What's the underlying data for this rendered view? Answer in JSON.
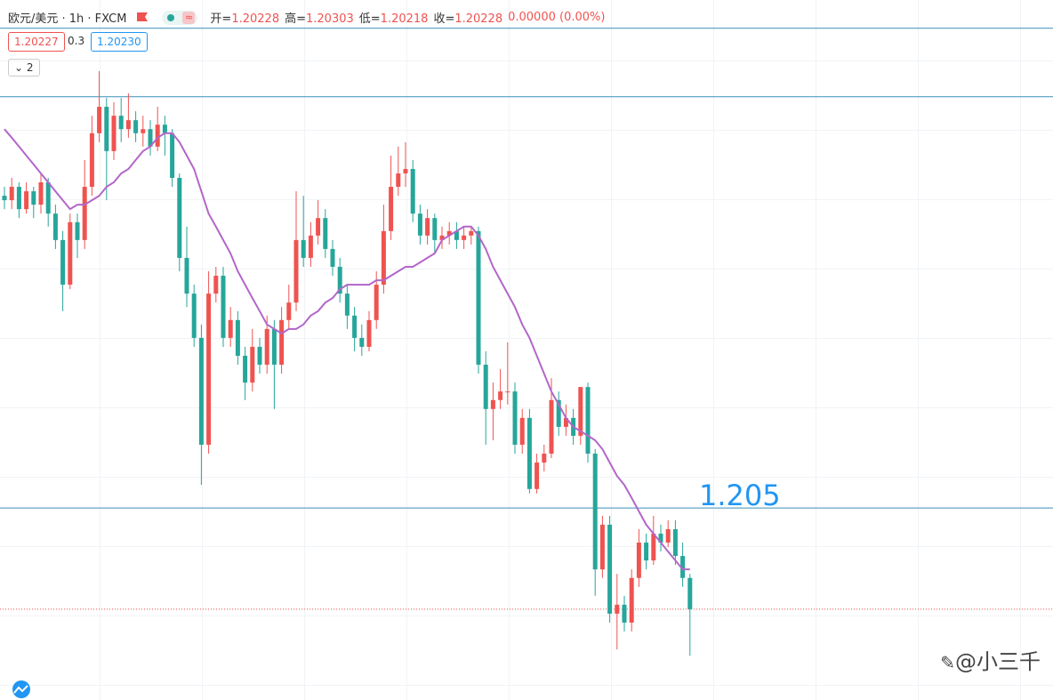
{
  "chart_data": {
    "type": "candlestick",
    "symbol": "欧元/美元 · 1h · FXCM",
    "ohlc_labels": [
      {
        "label": "开=",
        "value": "1.20228"
      },
      {
        "label": "高=",
        "value": "1.20303"
      },
      {
        "label": "低=",
        "value": "1.20218"
      },
      {
        "label": "收=",
        "value": "1.20228"
      }
    ],
    "change": "0.00000 (0.00%)",
    "bid": "1.20227",
    "spread": "0.3",
    "ask": "1.20230",
    "indicator_count": "2",
    "watermark": "@小三千",
    "up_color": "#ef5350",
    "down_color": "#26a69a",
    "ma_color": "#b366c9",
    "line_color": "#3a8fb7",
    "ylim": [
      1.19984,
      1.21865
    ],
    "hlines": [
      1.21789,
      1.21605,
      1.205
    ],
    "annotation_line": 2,
    "price_line": 1.20228,
    "candles": [
      [
        1.21339,
        1.21363,
        1.21303,
        1.21327
      ],
      [
        1.21327,
        1.21387,
        1.21303,
        1.21363
      ],
      [
        1.21363,
        1.21375,
        1.21279,
        1.21303
      ],
      [
        1.21303,
        1.21375,
        1.21291,
        1.21351
      ],
      [
        1.21351,
        1.21363,
        1.21279,
        1.21315
      ],
      [
        1.21315,
        1.21399,
        1.21291,
        1.21375
      ],
      [
        1.21375,
        1.21387,
        1.21256,
        1.21291
      ],
      [
        1.21291,
        1.21315,
        1.21196,
        1.2122
      ],
      [
        1.2122,
        1.21244,
        1.21029,
        1.211
      ],
      [
        1.211,
        1.21291,
        1.21088,
        1.21268
      ],
      [
        1.21268,
        1.21291,
        1.21172,
        1.2122
      ],
      [
        1.2122,
        1.21435,
        1.21196,
        1.21363
      ],
      [
        1.21363,
        1.21554,
        1.21339,
        1.21507
      ],
      [
        1.21507,
        1.21674,
        1.21483,
        1.21578
      ],
      [
        1.21578,
        1.21602,
        1.21327,
        1.21459
      ],
      [
        1.21459,
        1.2159,
        1.21435,
        1.21554
      ],
      [
        1.21554,
        1.21602,
        1.21483,
        1.21518
      ],
      [
        1.21518,
        1.21614,
        1.21495,
        1.21542
      ],
      [
        1.21542,
        1.21566,
        1.21483,
        1.21507
      ],
      [
        1.21507,
        1.21554,
        1.21471,
        1.21518
      ],
      [
        1.21518,
        1.21542,
        1.21447,
        1.21471
      ],
      [
        1.21471,
        1.21578,
        1.21459,
        1.2153
      ],
      [
        1.2153,
        1.21554,
        1.21447,
        1.21507
      ],
      [
        1.21507,
        1.21518,
        1.21363,
        1.21387
      ],
      [
        1.21387,
        1.21399,
        1.21136,
        1.21172
      ],
      [
        1.21172,
        1.21256,
        1.2104,
        1.21076
      ],
      [
        1.21076,
        1.211,
        1.20933,
        1.20957
      ],
      [
        1.20957,
        1.20993,
        1.20562,
        1.2067
      ],
      [
        1.2067,
        1.21136,
        1.20646,
        1.21076
      ],
      [
        1.21076,
        1.21148,
        1.21052,
        1.21124
      ],
      [
        1.21124,
        1.21148,
        1.20933,
        1.20957
      ],
      [
        1.20957,
        1.2104,
        1.20933,
        1.21005
      ],
      [
        1.21005,
        1.21029,
        1.20885,
        1.20909
      ],
      [
        1.20909,
        1.20933,
        1.2079,
        1.20837
      ],
      [
        1.20837,
        1.20981,
        1.20813,
        1.20933
      ],
      [
        1.20933,
        1.20957,
        1.20861,
        1.20885
      ],
      [
        1.20885,
        1.21017,
        1.20861,
        1.20981
      ],
      [
        1.20981,
        1.21005,
        1.20766,
        1.20885
      ],
      [
        1.20885,
        1.2104,
        1.20861,
        1.21005
      ],
      [
        1.21005,
        1.211,
        1.20981,
        1.21052
      ],
      [
        1.21052,
        1.21351,
        1.21029,
        1.2122
      ],
      [
        1.2122,
        1.21339,
        1.21148,
        1.21172
      ],
      [
        1.21172,
        1.21268,
        1.21148,
        1.21232
      ],
      [
        1.21232,
        1.21327,
        1.21208,
        1.21279
      ],
      [
        1.21279,
        1.21303,
        1.21172,
        1.21196
      ],
      [
        1.21196,
        1.2122,
        1.21124,
        1.21148
      ],
      [
        1.21148,
        1.21172,
        1.21052,
        1.21076
      ],
      [
        1.21076,
        1.211,
        1.20981,
        1.21017
      ],
      [
        1.21017,
        1.2104,
        1.20921,
        1.20957
      ],
      [
        1.20957,
        1.20993,
        1.20909,
        1.20933
      ],
      [
        1.20933,
        1.21029,
        1.20921,
        1.21005
      ],
      [
        1.21005,
        1.21136,
        1.20981,
        1.211
      ],
      [
        1.211,
        1.21315,
        1.21076,
        1.21244
      ],
      [
        1.21244,
        1.21447,
        1.2122,
        1.21363
      ],
      [
        1.21363,
        1.21471,
        1.21339,
        1.21399
      ],
      [
        1.21399,
        1.21483,
        1.21363,
        1.21411
      ],
      [
        1.21411,
        1.21435,
        1.21268,
        1.21291
      ],
      [
        1.21291,
        1.21315,
        1.21208,
        1.21232
      ],
      [
        1.21232,
        1.21303,
        1.21208,
        1.21279
      ],
      [
        1.21279,
        1.21291,
        1.21184,
        1.2122
      ],
      [
        1.2122,
        1.21256,
        1.21196,
        1.21232
      ],
      [
        1.21232,
        1.21268,
        1.21208,
        1.21244
      ],
      [
        1.21244,
        1.21268,
        1.21196,
        1.2122
      ],
      [
        1.2122,
        1.21256,
        1.21196,
        1.21232
      ],
      [
        1.21232,
        1.21256,
        1.21208,
        1.21244
      ],
      [
        1.21244,
        1.21256,
        1.20861,
        1.20885
      ],
      [
        1.20885,
        1.20921,
        1.2067,
        1.20766
      ],
      [
        1.20766,
        1.20837,
        1.20682,
        1.2079
      ],
      [
        1.2079,
        1.20873,
        1.20766,
        1.20813
      ],
      [
        1.20813,
        1.20945,
        1.20778,
        1.20813
      ],
      [
        1.20813,
        1.20837,
        1.20646,
        1.2067
      ],
      [
        1.2067,
        1.20766,
        1.20646,
        1.20742
      ],
      [
        1.20742,
        1.20766,
        1.20539,
        1.20551
      ],
      [
        1.20551,
        1.20646,
        1.20539,
        1.20622
      ],
      [
        1.20622,
        1.2067,
        1.20598,
        1.20646
      ],
      [
        1.20646,
        1.20849,
        1.20634,
        1.2079
      ],
      [
        1.2079,
        1.20813,
        1.20694,
        1.20718
      ],
      [
        1.20718,
        1.20778,
        1.20694,
        1.20742
      ],
      [
        1.20742,
        1.20766,
        1.2067,
        1.20694
      ],
      [
        1.20694,
        1.20825,
        1.2067,
        1.20825
      ],
      [
        1.20825,
        1.20837,
        1.20622,
        1.20646
      ],
      [
        1.20646,
        1.20658,
        1.20264,
        1.20335
      ],
      [
        1.20335,
        1.20479,
        1.20312,
        1.20455
      ],
      [
        1.20455,
        1.20479,
        1.20192,
        1.20216
      ],
      [
        1.20216,
        1.20323,
        1.2012,
        1.2024
      ],
      [
        1.2024,
        1.20264,
        1.20168,
        1.20192
      ],
      [
        1.20192,
        1.20335,
        1.20168,
        1.20312
      ],
      [
        1.20312,
        1.20443,
        1.20288,
        1.20407
      ],
      [
        1.20407,
        1.20431,
        1.20335,
        1.20359
      ],
      [
        1.20359,
        1.20479,
        1.20347,
        1.20431
      ],
      [
        1.20431,
        1.20455,
        1.20383,
        1.20407
      ],
      [
        1.20407,
        1.20467,
        1.20395,
        1.20443
      ],
      [
        1.20443,
        1.20467,
        1.20347,
        1.20371
      ],
      [
        1.20371,
        1.20407,
        1.20288,
        1.20312
      ],
      [
        1.20312,
        1.20323,
        1.20103,
        1.20228
      ]
    ],
    "ma": [
      1.21518,
      1.21495,
      1.21471,
      1.21447,
      1.21423,
      1.21399,
      1.21375,
      1.21351,
      1.21327,
      1.21303,
      1.21315,
      1.21315,
      1.21327,
      1.21339,
      1.21363,
      1.21375,
      1.21399,
      1.21411,
      1.21435,
      1.21459,
      1.21471,
      1.21495,
      1.21507,
      1.21507,
      1.21483,
      1.21447,
      1.21411,
      1.21351,
      1.21291,
      1.21256,
      1.2122,
      1.21184,
      1.21136,
      1.211,
      1.21064,
      1.21029,
      1.20993,
      1.20981,
      1.20969,
      1.20981,
      1.20981,
      1.20993,
      1.21017,
      1.21029,
      1.21052,
      1.21064,
      1.21088,
      1.211,
      1.211,
      1.211,
      1.211,
      1.21112,
      1.21112,
      1.21124,
      1.21136,
      1.21148,
      1.21148,
      1.2116,
      1.21172,
      1.21184,
      1.2122,
      1.21232,
      1.21244,
      1.21256,
      1.21256,
      1.21232,
      1.21196,
      1.21148,
      1.21112,
      1.21076,
      1.2104,
      1.20993,
      1.20957,
      1.20909,
      1.20861,
      1.20813,
      1.20778,
      1.20742,
      1.20718,
      1.20706,
      1.20694,
      1.20682,
      1.20658,
      1.20622,
      1.20586,
      1.20562,
      1.20527,
      1.20491,
      1.20455,
      1.20431,
      1.20407,
      1.20383,
      1.20359,
      1.20335,
      1.20335
    ]
  }
}
